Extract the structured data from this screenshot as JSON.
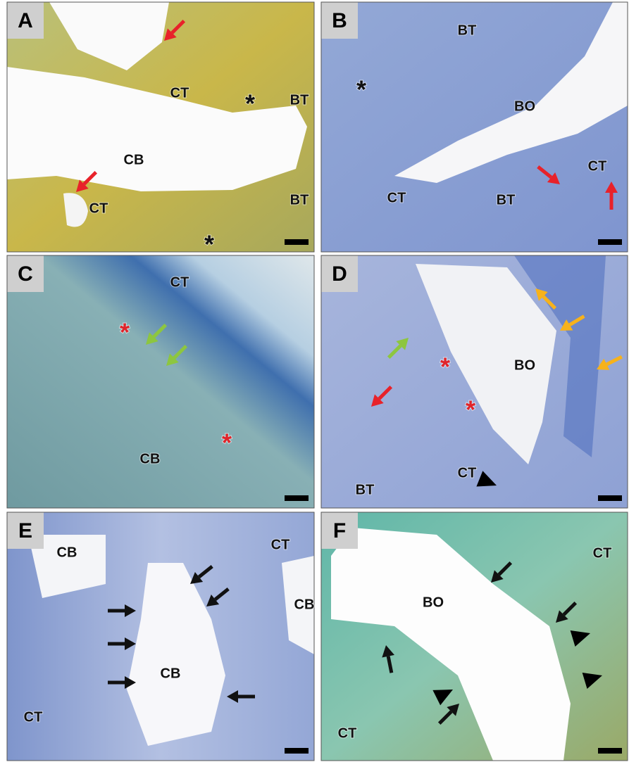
{
  "panels": [
    {
      "letter": "A",
      "labels": [
        "CT",
        "*",
        "BT",
        "CB",
        "BT",
        "CT",
        "*"
      ]
    },
    {
      "letter": "B",
      "labels": [
        "BT",
        "*",
        "BO",
        "CT",
        "BT",
        "CT"
      ]
    },
    {
      "letter": "C",
      "labels": [
        "CT",
        "*",
        "*",
        "CB"
      ]
    },
    {
      "letter": "D",
      "labels": [
        "BO",
        "*",
        "*",
        "CT",
        "BT"
      ]
    },
    {
      "letter": "E",
      "labels": [
        "CT",
        "CB",
        "CB",
        "CB",
        "CT"
      ]
    },
    {
      "letter": "F",
      "labels": [
        "CT",
        "BO",
        "CT"
      ]
    }
  ]
}
